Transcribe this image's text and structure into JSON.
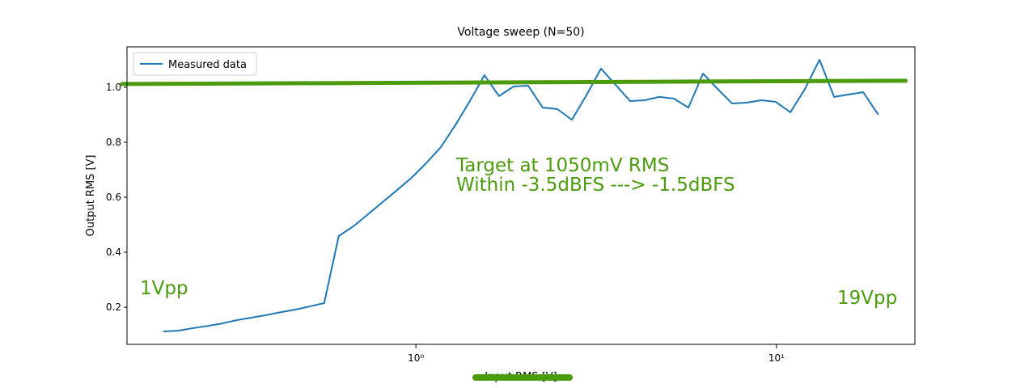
{
  "chart_data": {
    "type": "line",
    "title": "Voltage sweep (N=50)",
    "xlabel": "Input RMS [V]",
    "ylabel": "Output RMS [V]",
    "xscale": "log",
    "xlim": [
      0.158,
      24.2
    ],
    "ylim": [
      0.065,
      1.147
    ],
    "xticks": [
      {
        "value": 1,
        "label": "10⁰"
      },
      {
        "value": 10,
        "label": "10¹"
      }
    ],
    "yticks": [
      0.2,
      0.4,
      0.6,
      0.8,
      {
        "value": 1,
        "label": "1.0"
      }
    ],
    "legend": "upper left",
    "annotations": [
      "Target at 1050mV RMS",
      "Within -3.5dBFS ---> -1.5dBFS",
      "1Vpp",
      "19Vpp"
    ],
    "series": [
      {
        "name": "Measured data",
        "color": "#1f77b4",
        "width": 2,
        "x": [
          0.2,
          0.2195,
          0.2409,
          0.2644,
          0.2902,
          0.3185,
          0.3495,
          0.3836,
          0.421,
          0.4621,
          0.5071,
          0.5566,
          0.6108,
          0.6704,
          0.7358,
          0.8075,
          0.8862,
          0.9726,
          1.0675,
          1.1716,
          1.2858,
          1.4112,
          1.5488,
          1.6998,
          1.8655,
          2.0474,
          2.2471,
          2.4662,
          2.7067,
          2.9706,
          3.2603,
          3.5782,
          3.9271,
          4.31,
          4.7303,
          5.1916,
          5.6978,
          6.2534,
          6.8632,
          7.5324,
          8.2669,
          9.073,
          9.9577,
          10.929,
          11.994,
          13.164,
          14.448,
          15.856,
          17.402,
          19.099
        ],
        "values": [
          0.112,
          0.115,
          0.124,
          0.132,
          0.141,
          0.153,
          0.162,
          0.171,
          0.182,
          0.191,
          0.203,
          0.215,
          0.459,
          0.494,
          0.538,
          0.582,
          0.626,
          0.671,
          0.724,
          0.782,
          0.862,
          0.95,
          1.044,
          0.968,
          1.003,
          1.006,
          0.926,
          0.921,
          0.882,
          0.971,
          1.068,
          1.009,
          0.95,
          0.953,
          0.965,
          0.959,
          0.926,
          1.05,
          0.994,
          0.941,
          0.944,
          0.953,
          0.947,
          0.909,
          0.994,
          1.1,
          0.965,
          0.974,
          0.982,
          0.903
        ]
      },
      {
        "color": "#4c9a0e",
        "width": 5,
        "x": [
          0.153,
          22.8
        ],
        "values": [
          1.012,
          1.024
        ]
      }
    ]
  }
}
